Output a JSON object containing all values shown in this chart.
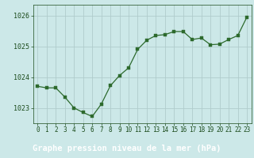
{
  "x": [
    0,
    1,
    2,
    3,
    4,
    5,
    6,
    7,
    8,
    9,
    10,
    11,
    12,
    13,
    14,
    15,
    16,
    17,
    18,
    19,
    20,
    21,
    22,
    23
  ],
  "y": [
    1023.7,
    1023.65,
    1023.65,
    1023.35,
    1023.0,
    1022.85,
    1022.72,
    1023.12,
    1023.72,
    1024.05,
    1024.3,
    1024.9,
    1025.2,
    1025.35,
    1025.38,
    1025.48,
    1025.48,
    1025.22,
    1025.27,
    1025.05,
    1025.07,
    1025.22,
    1025.35,
    1025.95
  ],
  "line_color": "#2d6a2d",
  "marker_color": "#2d6a2d",
  "bg_color": "#cce8e8",
  "grid_color": "#b0cccc",
  "axis_bg": "#cce8e8",
  "text_color": "#1a4a1a",
  "bottom_bar_color": "#3a7a3a",
  "xlabel": "Graphe pression niveau de la mer (hPa)",
  "ylim": [
    1022.5,
    1026.35
  ],
  "yticks": [
    1023,
    1024,
    1025,
    1026
  ],
  "xticks": [
    0,
    1,
    2,
    3,
    4,
    5,
    6,
    7,
    8,
    9,
    10,
    11,
    12,
    13,
    14,
    15,
    16,
    17,
    18,
    19,
    20,
    21,
    22,
    23
  ],
  "tick_fontsize": 5.5,
  "xlabel_fontsize": 7.5,
  "ytick_fontsize": 6.0
}
